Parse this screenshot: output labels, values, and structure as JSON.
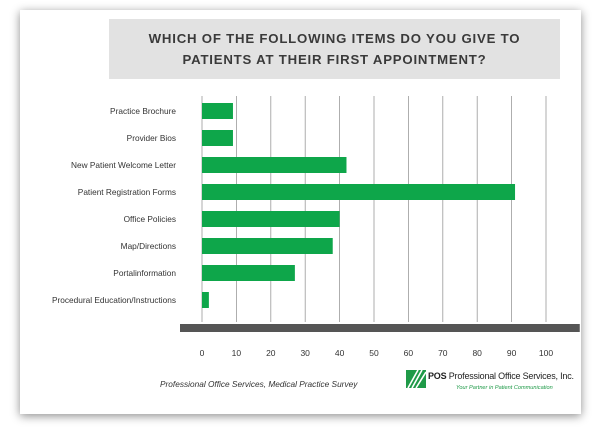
{
  "chart_data": {
    "type": "bar",
    "orientation": "horizontal",
    "title_lines": [
      "WHICH OF THE FOLLOWING ITEMS DO YOU GIVE TO",
      "PATIENTS AT THEIR FIRST APPOINTMENT?"
    ],
    "categories": [
      "Practice Brochure",
      "Provider Bios",
      "New Patient Welcome Letter",
      "Patient Registration Forms",
      "Office Policies",
      "Map/Directions",
      "Portalinformation",
      "Procedural Education/Instructions"
    ],
    "values": [
      9,
      9,
      42,
      91,
      40,
      38,
      27,
      2
    ],
    "x_ticks": [
      "0",
      "10",
      "20",
      "30",
      "40",
      "50",
      "60",
      "70",
      "80",
      "90",
      "100"
    ],
    "xlim": [
      0,
      104
    ],
    "grid": "vertical",
    "bar_color": "#0ea64a",
    "axis_bar_color": "#555555"
  },
  "footer": {
    "source": "Professional Office Services, Medical Practice Survey",
    "logo_brand": "POS",
    "logo_name": "Professional Office Services, Inc.",
    "logo_tagline": "Your Partner in Patient Communication",
    "logo_icon": "pos-logo-icon"
  }
}
